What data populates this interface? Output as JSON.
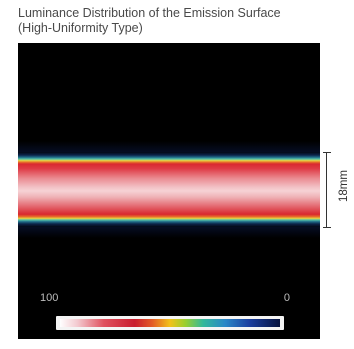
{
  "chart_data": {
    "type": "heatmap",
    "title_lines": [
      "Luminance Distribution of the Emission Surface",
      "(High-Uniformity Type)"
    ],
    "colorbar": {
      "max_label": "100",
      "min_label": "0",
      "colors": [
        "#ffffff",
        "#e0505e",
        "#c91d2e",
        "#e35b25",
        "#f2c21a",
        "#98cf30",
        "#33b89a",
        "#2a88c8",
        "#1b3fa0",
        "#06123e"
      ]
    },
    "band": {
      "orientation": "horizontal",
      "width_label": "18mm",
      "peak_color": "#f6d2d5",
      "edge_color": "#d9282f",
      "background_color": "#000000"
    }
  }
}
